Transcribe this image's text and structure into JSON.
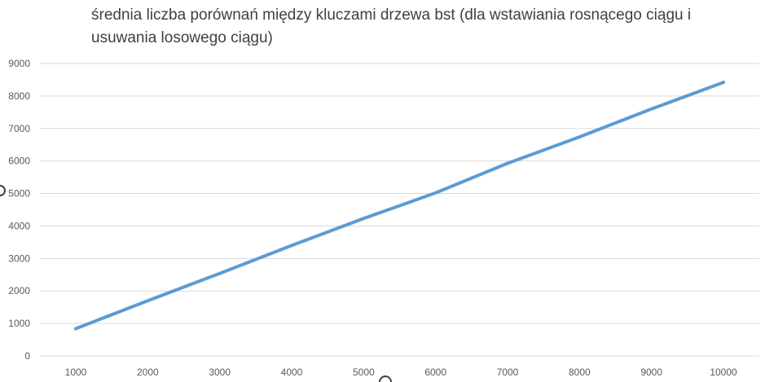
{
  "chart_data": {
    "type": "line",
    "title": "średnia liczba porównań między kluczami drzewa bst (dla wstawiania rosnącego ciągu i usuwania losowego ciągu)",
    "xlabel": "",
    "ylabel": "",
    "x": [
      1000,
      2000,
      3000,
      4000,
      5000,
      6000,
      7000,
      8000,
      9000,
      10000
    ],
    "series": [
      {
        "values": [
          840,
          1700,
          2540,
          3400,
          4230,
          5020,
          5930,
          6740,
          7600,
          8420
        ],
        "color": "#5b9bd5"
      }
    ],
    "ylim": [
      0,
      9000
    ],
    "yticks": [
      0,
      1000,
      2000,
      3000,
      4000,
      5000,
      6000,
      7000,
      8000,
      9000
    ],
    "xticks": [
      1000,
      2000,
      3000,
      4000,
      5000,
      6000,
      7000,
      8000,
      9000,
      10000
    ],
    "grid": "horizontal",
    "legend": "none"
  }
}
